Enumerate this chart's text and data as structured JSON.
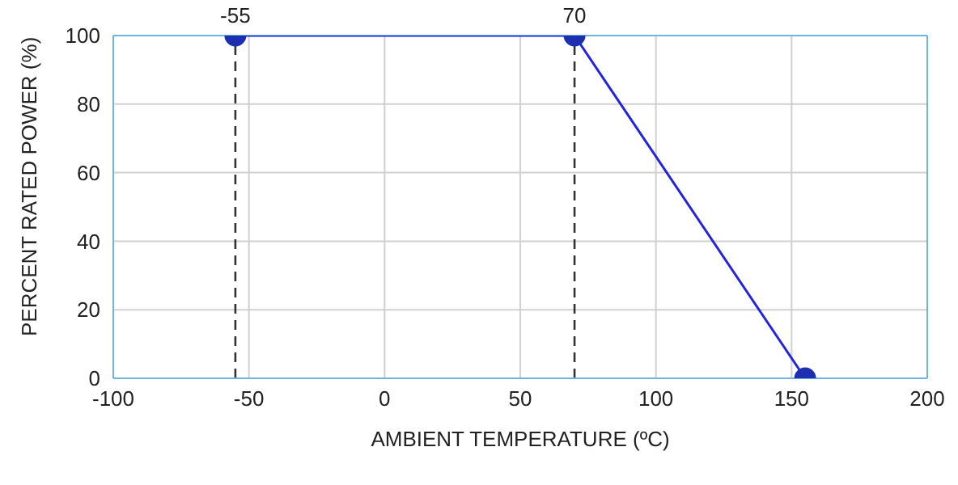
{
  "chart_data": {
    "type": "line",
    "xlabel": "AMBIENT TEMPERATURE (ºC)",
    "ylabel": "PERCENT RATED POWER (%)",
    "x": [
      -55,
      70,
      155
    ],
    "series": [
      {
        "color": "#2424e0",
        "values": [
          100,
          100,
          0
        ]
      }
    ],
    "xlim": [
      -100,
      200
    ],
    "xticks": [
      -100,
      -50,
      0,
      50,
      100,
      150,
      200
    ],
    "ylim": [
      0,
      100
    ],
    "yticks": [
      0,
      20,
      40,
      60,
      80,
      100
    ],
    "ref_lines": [
      {
        "axis": "x",
        "value": -55,
        "label": "-55",
        "color": "#333333",
        "line_style": "dashed"
      },
      {
        "axis": "x",
        "value": 70,
        "label": "70",
        "color": "#333333",
        "line_style": "dashed"
      }
    ],
    "grid": true,
    "marker": "circle",
    "line_style": "solid",
    "legend": false
  }
}
